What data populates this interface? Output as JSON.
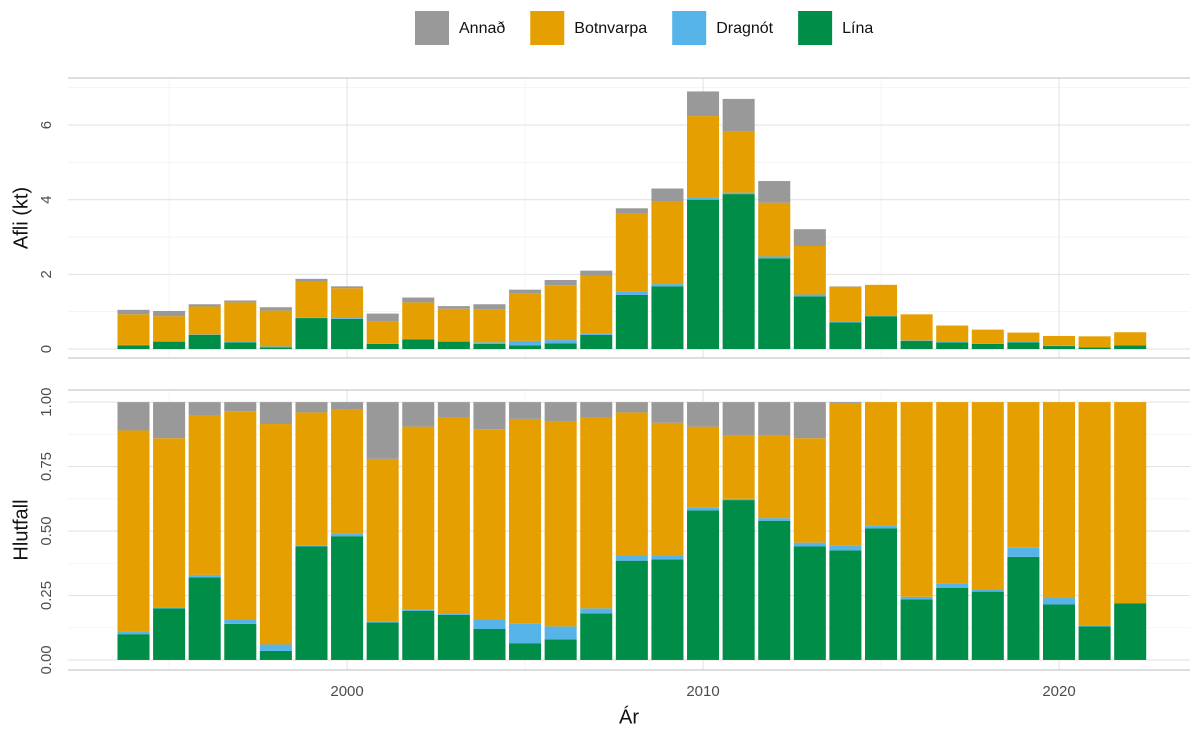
{
  "x_label": "Ár",
  "chart_data": [
    {
      "type": "bar",
      "stacked": true,
      "ylabel": "Afli (kt)",
      "x": [
        1994,
        1995,
        1996,
        1997,
        1998,
        1999,
        2000,
        2001,
        2002,
        2003,
        2004,
        2005,
        2006,
        2007,
        2008,
        2009,
        2010,
        2011,
        2012,
        2013,
        2014,
        2015,
        2016,
        2017,
        2018,
        2019,
        2020,
        2021,
        2022
      ],
      "xlim": [
        1992.16,
        2023.68
      ],
      "xticks": [
        2000,
        2010,
        2020
      ],
      "ylim": [
        -0.24,
        7.26
      ],
      "yticks": [
        0,
        2,
        4,
        6
      ],
      "grid": true,
      "series": [
        {
          "name": "Annað",
          "color": "#999999",
          "values": [
            0.12,
            0.14,
            0.06,
            0.05,
            0.09,
            0.07,
            0.05,
            0.2,
            0.13,
            0.07,
            0.13,
            0.1,
            0.14,
            0.13,
            0.15,
            0.35,
            0.66,
            0.87,
            0.58,
            0.45,
            0.01,
            0,
            0,
            0,
            0,
            0,
            0,
            0,
            0
          ]
        },
        {
          "name": "Botnvarpa",
          "color": "#E69F00",
          "values": [
            0.82,
            0.67,
            0.75,
            1.05,
            0.96,
            0.97,
            0.8,
            0.6,
            0.98,
            0.87,
            0.89,
            1.27,
            1.47,
            1.55,
            2.09,
            2.21,
            2.17,
            1.64,
            1.44,
            1.3,
            0.93,
            0.82,
            0.7,
            0.44,
            0.37,
            0.24,
            0.26,
            0.3,
            0.35
          ]
        },
        {
          "name": "Dragnót",
          "color": "#56B4E9",
          "values": [
            0.01,
            0.01,
            0.01,
            0.02,
            0.03,
            0.01,
            0.02,
            0.01,
            0.01,
            0.01,
            0.04,
            0.12,
            0.09,
            0.04,
            0.08,
            0.06,
            0.07,
            0.04,
            0.05,
            0.05,
            0.03,
            0.02,
            0.01,
            0.01,
            0.01,
            0.02,
            0.01,
            0,
            0
          ]
        },
        {
          "name": "Lína",
          "color": "#008d48",
          "values": [
            0.1,
            0.2,
            0.38,
            0.18,
            0.04,
            0.83,
            0.81,
            0.14,
            0.26,
            0.2,
            0.14,
            0.1,
            0.15,
            0.38,
            1.45,
            1.68,
            4.0,
            4.15,
            2.43,
            1.41,
            0.71,
            0.88,
            0.22,
            0.18,
            0.14,
            0.18,
            0.08,
            0.04,
            0.1
          ]
        }
      ]
    },
    {
      "type": "bar",
      "stacked": true,
      "ylabel": "Hlutfall",
      "x": [
        1994,
        1995,
        1996,
        1997,
        1998,
        1999,
        2000,
        2001,
        2002,
        2003,
        2004,
        2005,
        2006,
        2007,
        2008,
        2009,
        2010,
        2011,
        2012,
        2013,
        2014,
        2015,
        2016,
        2017,
        2018,
        2019,
        2020,
        2021,
        2022
      ],
      "xlim": [
        1992.16,
        2023.68
      ],
      "xticks": [
        2000,
        2010,
        2020
      ],
      "ylim": [
        -0.039,
        1.047
      ],
      "yticks": [
        {
          "value": 0,
          "label": "0.00"
        },
        {
          "value": 0.25,
          "label": "0.25"
        },
        {
          "value": 0.5,
          "label": "0.50"
        },
        {
          "value": 0.75,
          "label": "0.75"
        },
        {
          "value": 1,
          "label": "1.00"
        }
      ],
      "grid": true,
      "series": [
        {
          "name": "Annað",
          "color": "#999999",
          "values": [
            0.11,
            0.14,
            0.05,
            0.035,
            0.085,
            0.04,
            0.03,
            0.22,
            0.095,
            0.06,
            0.105,
            0.065,
            0.075,
            0.06,
            0.04,
            0.08,
            0.095,
            0.13,
            0.13,
            0.14,
            0.005,
            0,
            0,
            0,
            0,
            0,
            0,
            0,
            0
          ]
        },
        {
          "name": "Botnvarpa",
          "color": "#E69F00",
          "values": [
            0.78,
            0.655,
            0.62,
            0.81,
            0.855,
            0.515,
            0.48,
            0.63,
            0.71,
            0.76,
            0.74,
            0.795,
            0.795,
            0.74,
            0.555,
            0.515,
            0.315,
            0.245,
            0.32,
            0.405,
            0.55,
            0.48,
            0.755,
            0.705,
            0.725,
            0.565,
            0.76,
            0.865,
            0.78
          ]
        },
        {
          "name": "Dragnót",
          "color": "#56B4E9",
          "values": [
            0.01,
            0.005,
            0.01,
            0.015,
            0.025,
            0.005,
            0.01,
            0.005,
            0.005,
            0.005,
            0.035,
            0.075,
            0.05,
            0.02,
            0.02,
            0.015,
            0.01,
            0.005,
            0.01,
            0.015,
            0.02,
            0.01,
            0.01,
            0.015,
            0.01,
            0.035,
            0.025,
            0.005,
            0
          ]
        },
        {
          "name": "Lína",
          "color": "#008d48",
          "values": [
            0.1,
            0.2,
            0.32,
            0.14,
            0.035,
            0.44,
            0.48,
            0.145,
            0.19,
            0.175,
            0.12,
            0.065,
            0.08,
            0.18,
            0.385,
            0.39,
            0.58,
            0.62,
            0.54,
            0.44,
            0.425,
            0.51,
            0.235,
            0.28,
            0.265,
            0.4,
            0.215,
            0.13,
            0.22
          ]
        }
      ]
    }
  ]
}
